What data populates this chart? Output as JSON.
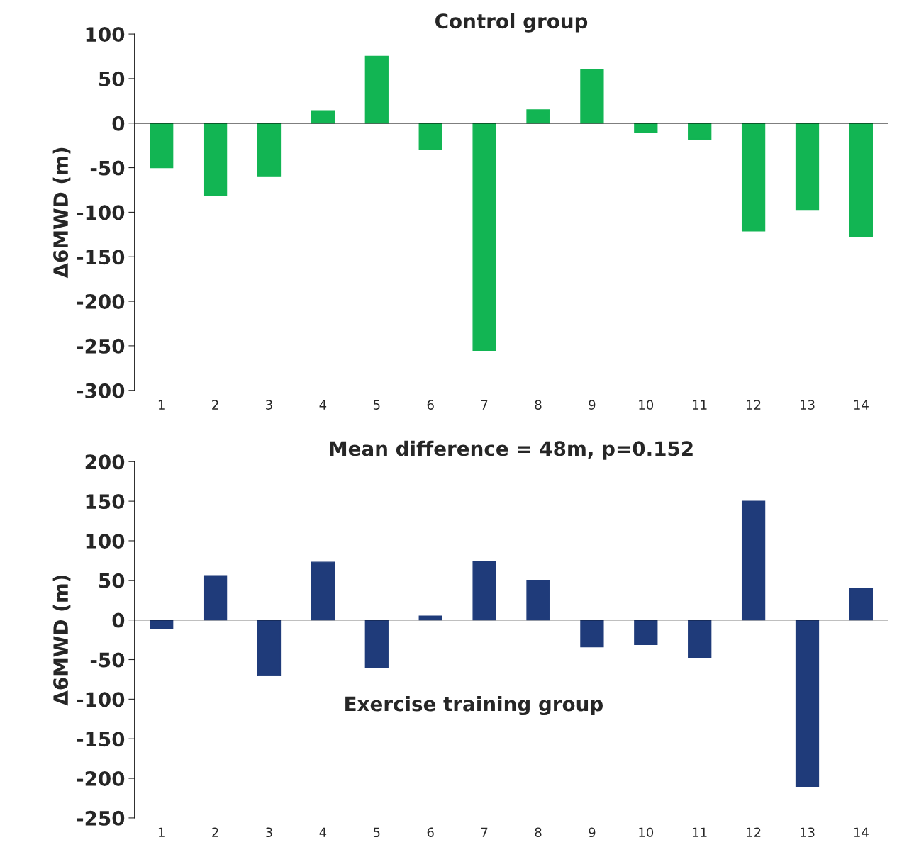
{
  "chart_data": [
    {
      "type": "bar",
      "title": "Control group",
      "ylabel": "Δ6MWD (m)",
      "categories": [
        "1",
        "2",
        "3",
        "4",
        "5",
        "6",
        "7",
        "8",
        "9",
        "10",
        "11",
        "12",
        "13",
        "14"
      ],
      "series": [
        {
          "color": "#12b553",
          "values": [
            -50,
            -81,
            -60,
            14,
            75,
            -29,
            -255,
            15,
            60,
            -10,
            -18,
            -121,
            -97,
            -127
          ]
        }
      ],
      "ref_lines": [
        {
          "axis": "y",
          "value": 0,
          "color": "#000000"
        }
      ],
      "ylim": [
        -300,
        100
      ],
      "yticks": [
        -300,
        -250,
        -200,
        -150,
        -100,
        -50,
        0,
        50,
        100
      ],
      "grid": false,
      "legend": false
    },
    {
      "type": "bar",
      "title": "Mean difference = 48m, p=0.152",
      "ylabel": "Δ6MWD (m)",
      "annotations": [
        "Exercise training group"
      ],
      "categories": [
        "1",
        "2",
        "3",
        "4",
        "5",
        "6",
        "7",
        "8",
        "9",
        "10",
        "11",
        "12",
        "13",
        "14"
      ],
      "series": [
        {
          "color": "#1f3b7a",
          "values": [
            -11,
            56,
            -70,
            73,
            -60,
            5,
            74,
            50,
            -34,
            -31,
            -48,
            150,
            -210,
            40
          ]
        }
      ],
      "ref_lines": [
        {
          "axis": "y",
          "value": 0,
          "color": "#000000"
        }
      ],
      "ylim": [
        -250,
        200
      ],
      "yticks": [
        -250,
        -200,
        -150,
        -100,
        -50,
        0,
        50,
        100,
        150,
        200
      ],
      "grid": false,
      "legend": false
    }
  ]
}
